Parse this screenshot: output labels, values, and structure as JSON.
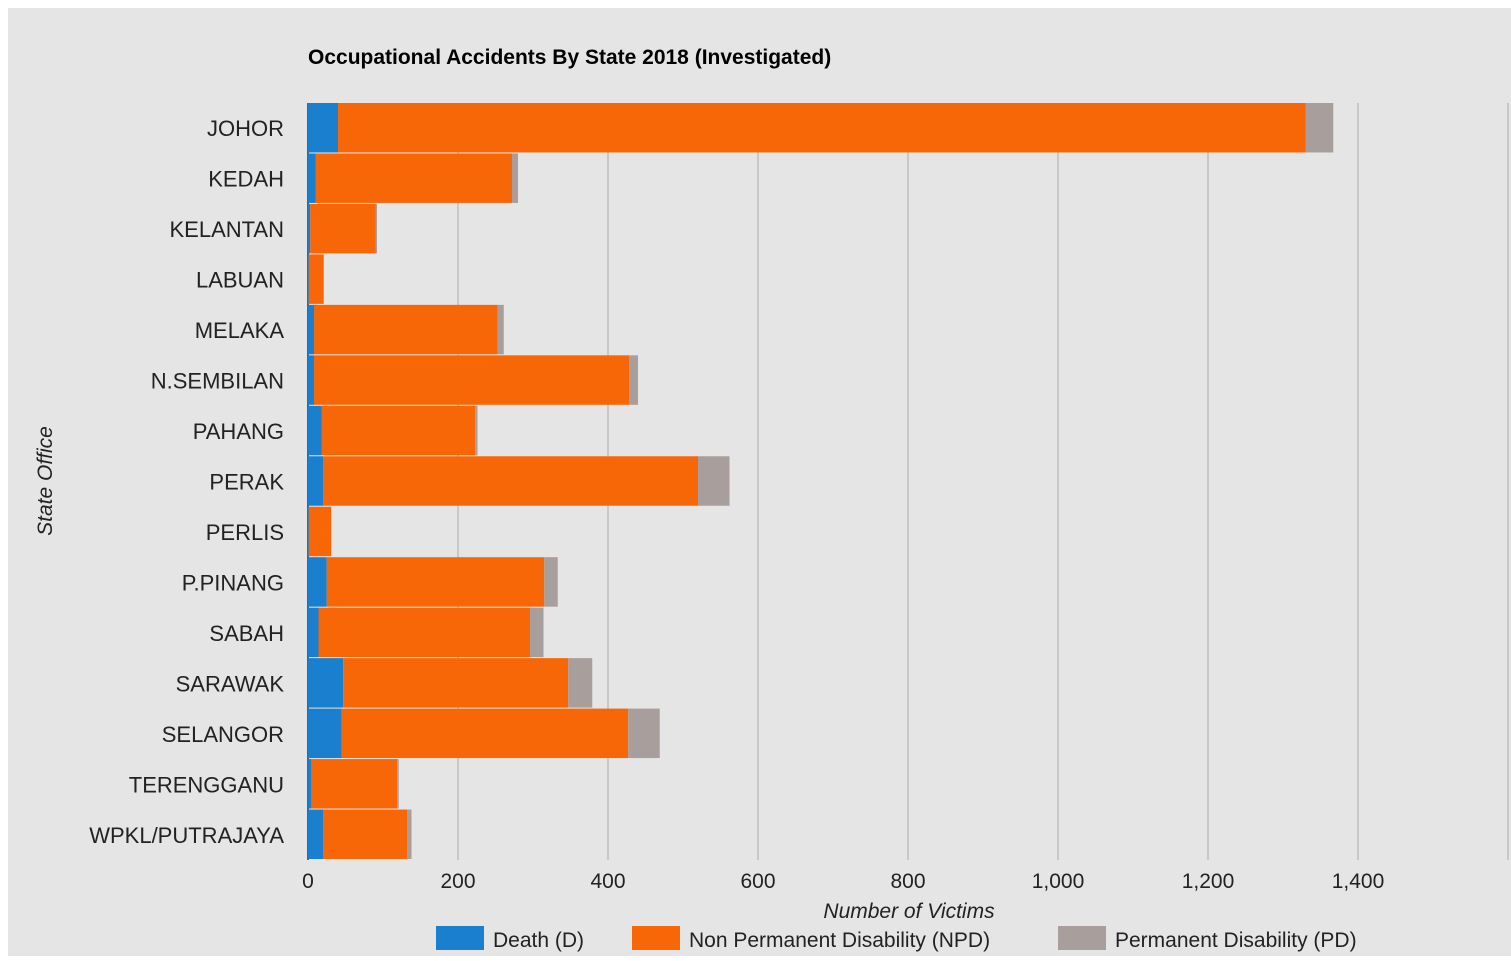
{
  "chart_data": {
    "type": "bar",
    "orientation": "horizontal",
    "stacked": true,
    "title": "Occupational Accidents By State 2018 (Investigated)",
    "xlabel": "Number of Victims",
    "ylabel": "State Office",
    "xlim": [
      0,
      1600
    ],
    "x_ticks": [
      0,
      200,
      400,
      600,
      800,
      1000,
      1200,
      1400
    ],
    "x_tick_labels": [
      "0",
      "200",
      "400",
      "600",
      "800",
      "1,000",
      "1,200",
      "1,400"
    ],
    "grid": true,
    "legend_position": "bottom",
    "categories": [
      "JOHOR",
      "KEDAH",
      "KELANTAN",
      "LABUAN",
      "MELAKA",
      "N.SEMBILAN",
      "PAHANG",
      "PERAK",
      "PERLIS",
      "P.PINANG",
      "SABAH",
      "SARAWAK",
      "SELANGOR",
      "TERENGGANU",
      "WPKL/PUTRAJAYA"
    ],
    "series": [
      {
        "name": "Death (D)",
        "color": "#1a7fce",
        "values": [
          40,
          10,
          3,
          1,
          8,
          8,
          18,
          20,
          1,
          25,
          14,
          47,
          45,
          4,
          20
        ]
      },
      {
        "name": "Non Permanent Disability (NPD)",
        "color": "#f76707",
        "values": [
          1290,
          262,
          87,
          20,
          245,
          420,
          205,
          500,
          30,
          290,
          282,
          300,
          382,
          115,
          112
        ]
      },
      {
        "name": "Permanent Disability (PD)",
        "color": "#a89e9c",
        "values": [
          37,
          8,
          2,
          0,
          8,
          12,
          3,
          42,
          0,
          18,
          18,
          32,
          42,
          2,
          6
        ]
      }
    ]
  }
}
